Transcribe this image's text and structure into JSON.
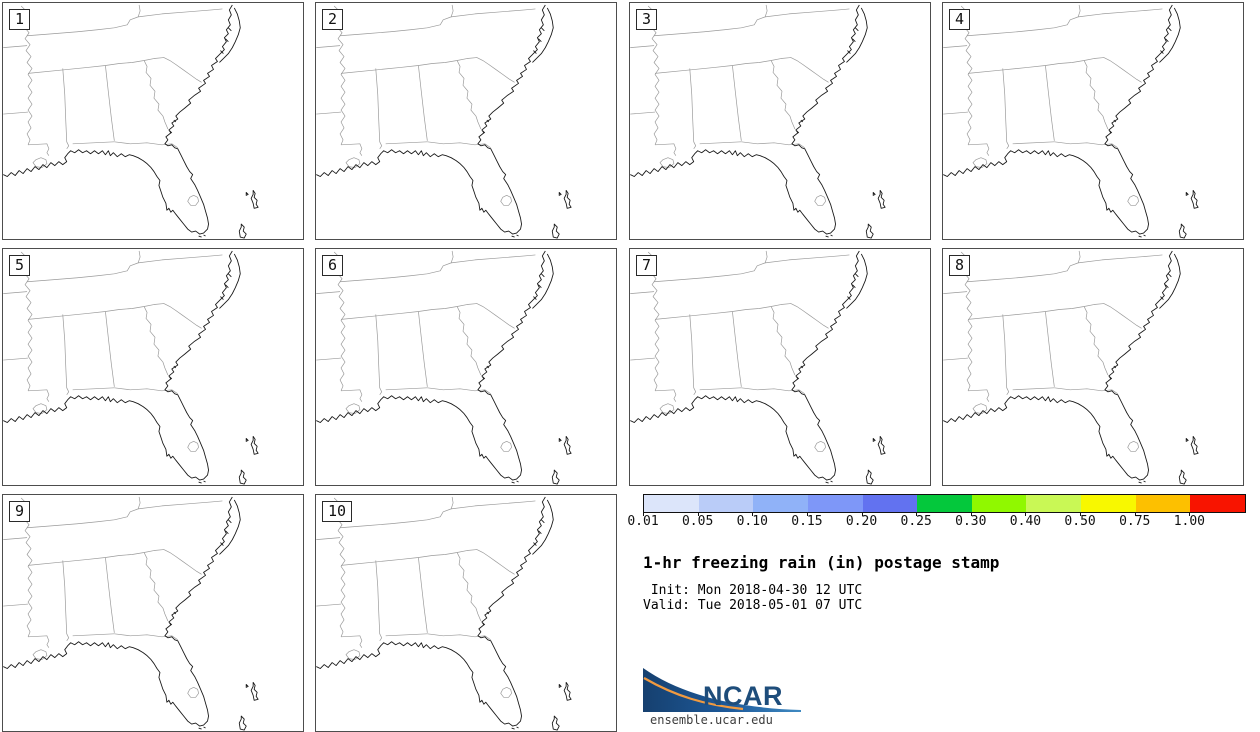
{
  "panels": [
    {
      "label": "1"
    },
    {
      "label": "2"
    },
    {
      "label": "3"
    },
    {
      "label": "4"
    },
    {
      "label": "5"
    },
    {
      "label": "6"
    },
    {
      "label": "7"
    },
    {
      "label": "8"
    },
    {
      "label": "9"
    },
    {
      "label": "10"
    }
  ],
  "colorbar": {
    "labels": [
      "0.01",
      "0.05",
      "0.10",
      "0.15",
      "0.20",
      "0.25",
      "0.30",
      "0.40",
      "0.50",
      "0.75",
      "1.00"
    ],
    "colors": [
      "#DCE5FA",
      "#BACCF8",
      "#90B2F8",
      "#7E97F8",
      "#6272F0",
      "#04C83C",
      "#90F800",
      "#C9F855",
      "#F8F800",
      "#FDC000",
      "#F81400"
    ]
  },
  "legend": {
    "title": "1-hr freezing rain (in) postage stamp",
    "init_line": " Init: Mon 2018-04-30 12 UTC",
    "valid_line": "Valid: Tue 2018-05-01 07 UTC"
  },
  "logo": {
    "text": "NCAR",
    "url": "ensemble.ucar.edu",
    "navy": "#16406f",
    "blue": "#3f8ac2",
    "orange": "#f09a40"
  }
}
